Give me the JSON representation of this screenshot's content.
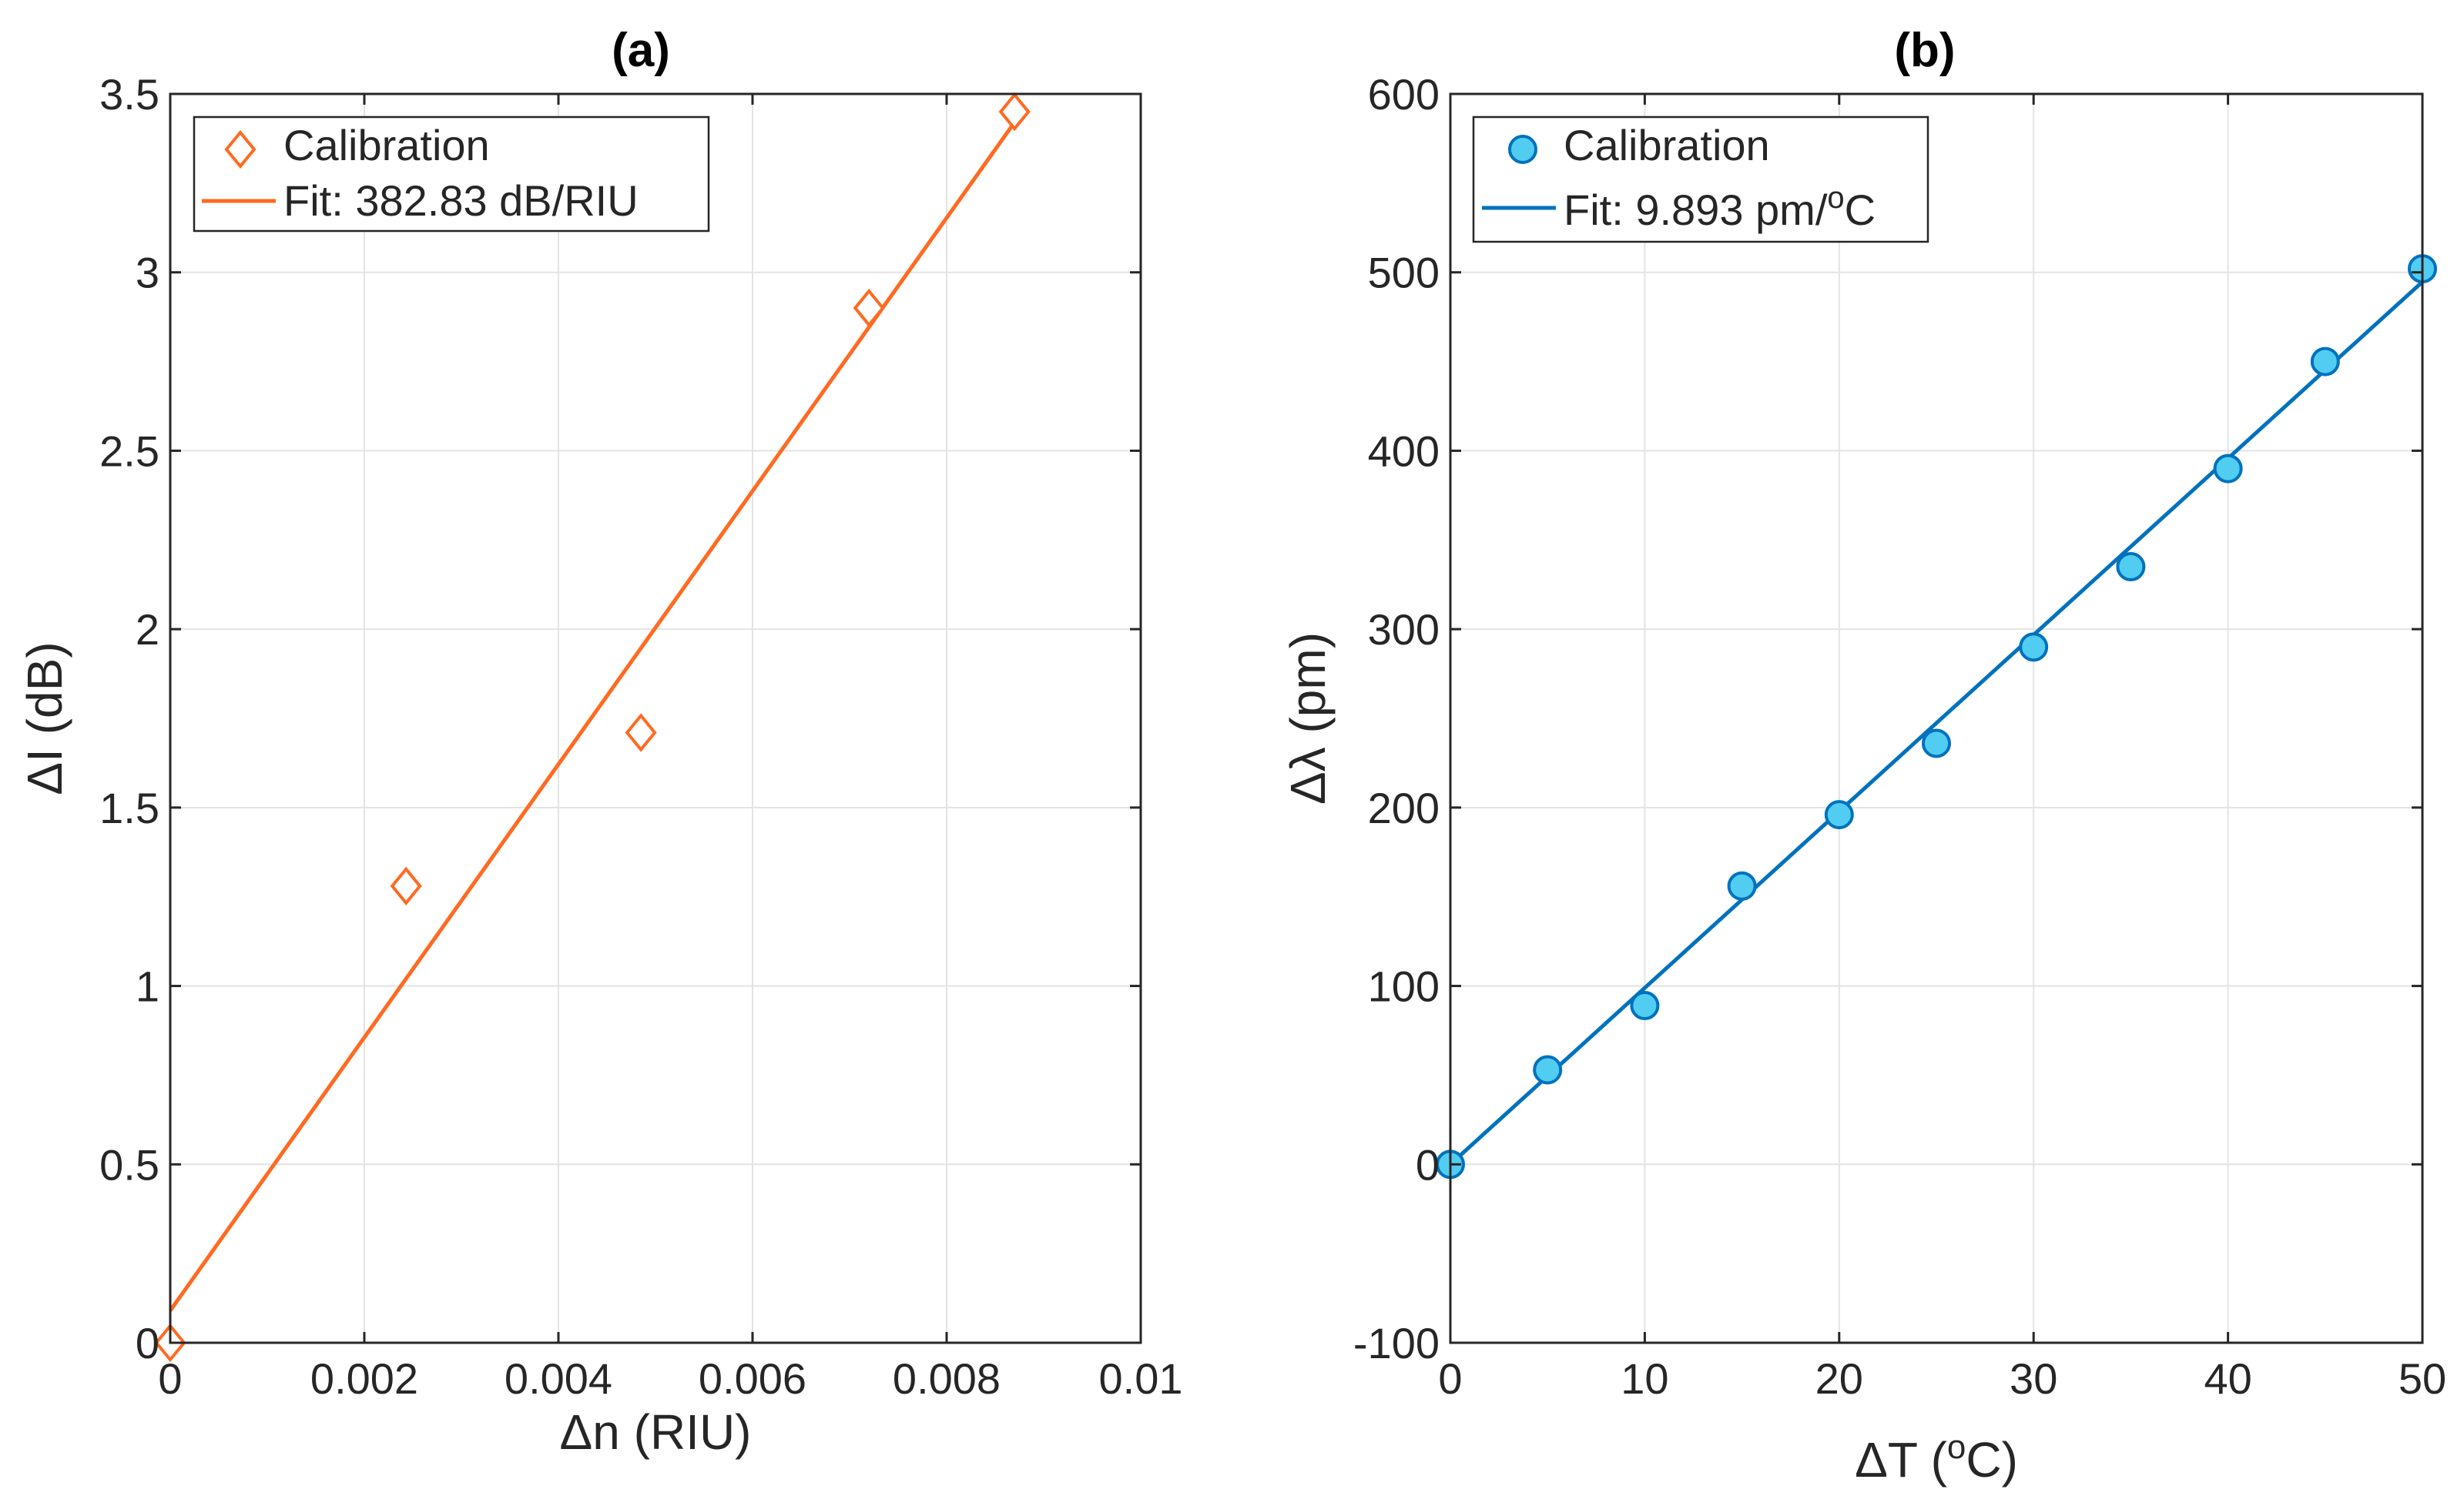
{
  "chart_data": [
    {
      "panel": "a",
      "type": "scatter",
      "title": "(a)",
      "xlabel": "Δn (RIU)",
      "ylabel": "ΔI (dB)",
      "xlim": [
        0,
        0.01
      ],
      "ylim": [
        0,
        3.5
      ],
      "xticks": [
        0,
        0.002,
        0.004,
        0.006,
        0.008,
        0.01
      ],
      "xtick_labels": [
        "0",
        "0.002",
        "0.004",
        "0.006",
        "0.008",
        "0.01"
      ],
      "yticks": [
        0,
        0.5,
        1,
        1.5,
        2,
        2.5,
        3,
        3.5
      ],
      "ytick_labels": [
        "0",
        "0.5",
        "1",
        "1.5",
        "2",
        "2.5",
        "3",
        "3.5"
      ],
      "grid": true,
      "legend_position": "top-left",
      "series": [
        {
          "name": "Calibration",
          "kind": "marker",
          "marker": "diamond",
          "color": "#ff6a21",
          "x": [
            0,
            0.00243,
            0.00485,
            0.0072,
            0.0087
          ],
          "y": [
            0,
            1.28,
            1.71,
            2.9,
            3.45
          ]
        },
        {
          "name": "Fit: 382.83 dB/RIU",
          "kind": "line",
          "color": "#ff6a21",
          "slope": 382.83,
          "intercept": 0.09,
          "x_range": [
            0,
            0.0087
          ]
        }
      ]
    },
    {
      "panel": "b",
      "type": "scatter",
      "title": "(b)",
      "xlabel": "ΔT (°C)",
      "ylabel": "Δλ (pm)",
      "xlim": [
        0,
        50
      ],
      "ylim": [
        -100,
        600
      ],
      "xticks": [
        0,
        10,
        20,
        30,
        40,
        50
      ],
      "xtick_labels": [
        "0",
        "10",
        "20",
        "30",
        "40",
        "50"
      ],
      "yticks": [
        -100,
        0,
        100,
        200,
        300,
        400,
        500,
        600
      ],
      "ytick_labels": [
        "-100",
        "0",
        "100",
        "200",
        "300",
        "400",
        "500",
        "600"
      ],
      "grid": true,
      "legend_position": "top-left",
      "series": [
        {
          "name": "Calibration",
          "kind": "marker",
          "marker": "circle",
          "color": "#0072bd",
          "fill": "#52cdf2",
          "x": [
            0,
            5,
            10,
            15,
            20,
            25,
            30,
            35,
            40,
            45,
            50
          ],
          "y": [
            0,
            53,
            89,
            156,
            196,
            236,
            290,
            335,
            390,
            450,
            502
          ]
        },
        {
          "name": "Fit: 9.893 pm/°C",
          "kind": "line",
          "color": "#0072bd",
          "slope": 9.893,
          "intercept": 0,
          "x_range": [
            0,
            50
          ]
        }
      ]
    }
  ]
}
